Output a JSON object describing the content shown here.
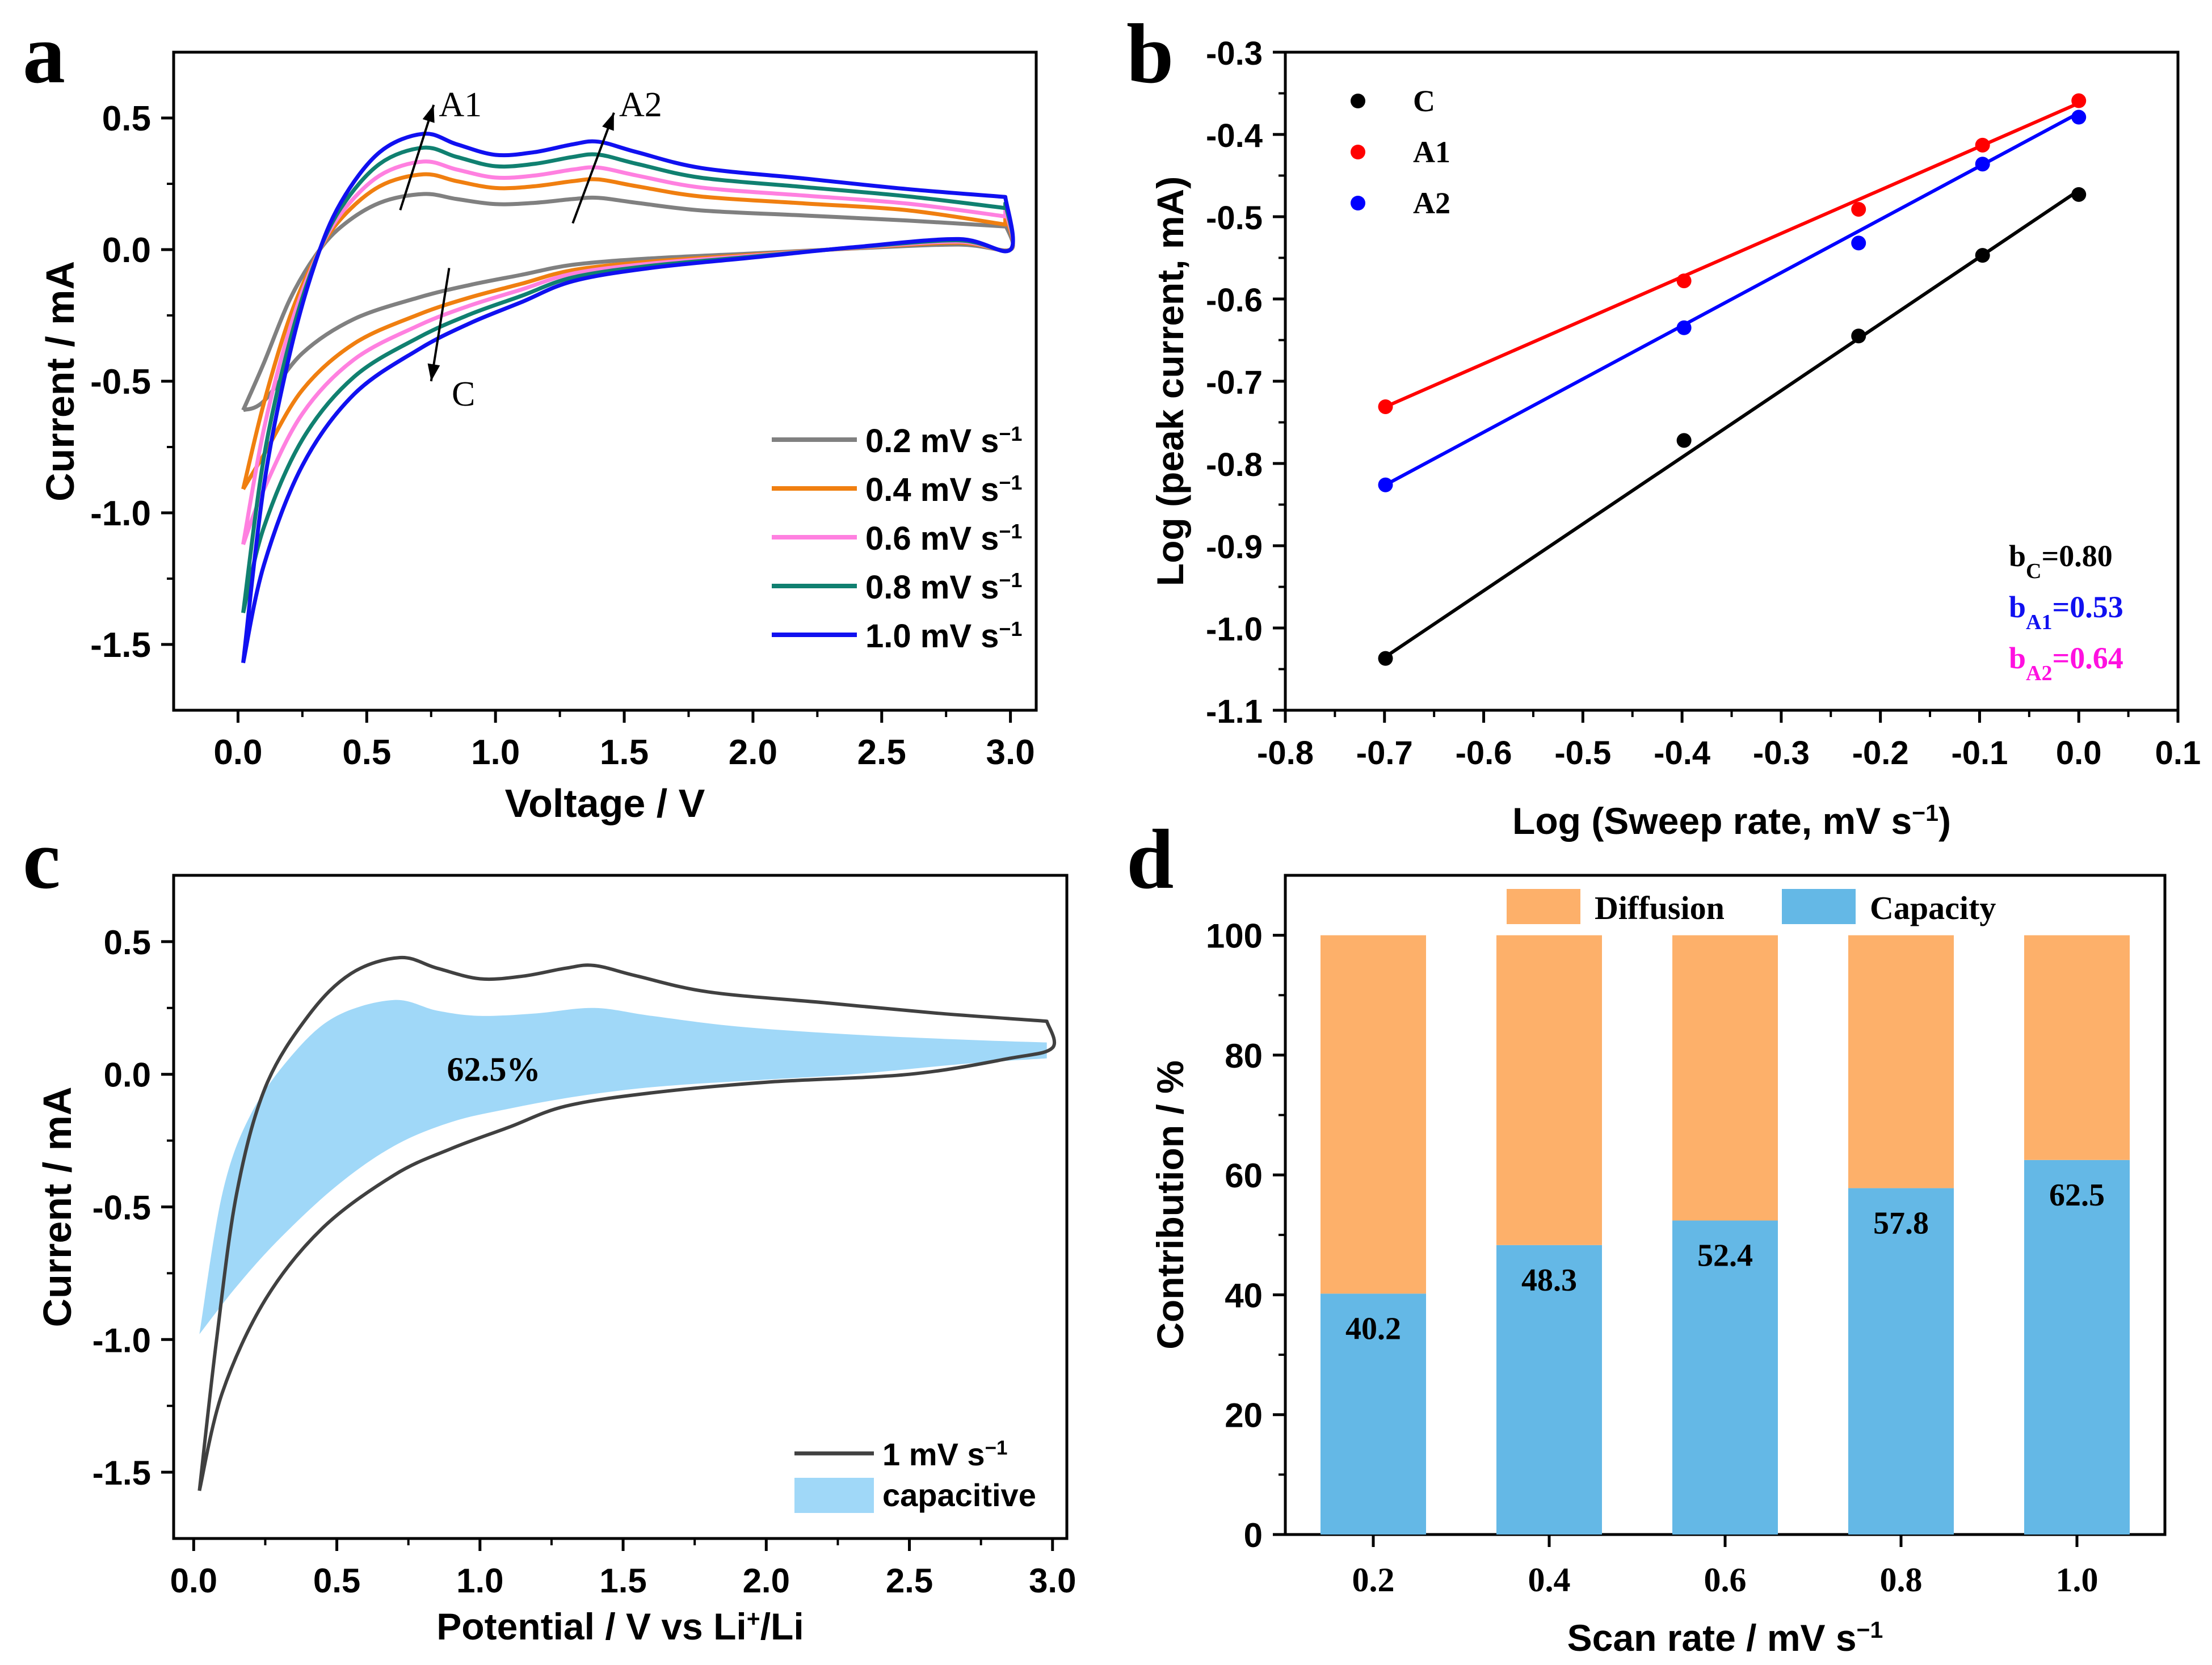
{
  "figure": {
    "panel_labels": [
      "a",
      "b",
      "c",
      "d"
    ]
  },
  "chart_data": [
    {
      "panel": "a",
      "type": "line",
      "title": "",
      "xlabel": "Voltage / V",
      "ylabel": "Current / mA",
      "xlim": [
        -0.25,
        3.1
      ],
      "ylim": [
        -1.75,
        0.75
      ],
      "xticks": [
        0.0,
        0.5,
        1.0,
        1.5,
        2.0,
        2.5,
        3.0
      ],
      "xtick_labels": [
        "0.0",
        "0.5",
        "1.0",
        "1.5",
        "2.0",
        "2.5",
        "3.0"
      ],
      "yticks": [
        0.5,
        0.0,
        -0.5,
        -1.0,
        -1.5
      ],
      "ytick_labels": [
        "0.5",
        "0.0",
        "-0.5",
        "-1.0",
        "-1.5"
      ],
      "legend_position": "bottom-right",
      "series": [
        {
          "name": "0.2 mV s",
          "name_sup": "−1",
          "color": "#808080",
          "scale": 0.48,
          "end": 0.08,
          "vmin": -0.61
        },
        {
          "name": "0.4 mV s",
          "name_sup": "−1",
          "color": "#f07f10",
          "scale": 0.65,
          "end": 0.06,
          "vmin": -0.91
        },
        {
          "name": "0.6 mV s",
          "name_sup": "−1",
          "color": "#ff80e0",
          "scale": 0.76,
          "end": 0.1,
          "vmin": -1.12
        },
        {
          "name": "0.8 mV s",
          "name_sup": "−1",
          "color": "#108070",
          "scale": 0.88,
          "end": 0.14,
          "vmin": -1.38
        },
        {
          "name": "1.0 mV s",
          "name_sup": "−1",
          "color": "#1010f0",
          "scale": 1.0,
          "end": 0.2,
          "vmin": -1.57
        }
      ],
      "reference_curve": {
        "anodic": [
          [
            0.02,
            -1.57
          ],
          [
            0.1,
            -0.9
          ],
          [
            0.2,
            -0.4
          ],
          [
            0.3,
            -0.05
          ],
          [
            0.4,
            0.18
          ],
          [
            0.55,
            0.37
          ],
          [
            0.72,
            0.44
          ],
          [
            0.85,
            0.4
          ],
          [
            1.0,
            0.36
          ],
          [
            1.15,
            0.37
          ],
          [
            1.3,
            0.4
          ],
          [
            1.4,
            0.41
          ],
          [
            1.55,
            0.37
          ],
          [
            1.8,
            0.31
          ],
          [
            2.2,
            0.27
          ],
          [
            2.6,
            0.23
          ],
          [
            2.98,
            0.2
          ]
        ],
        "cathodic": [
          [
            2.98,
            0.2
          ],
          [
            3.0,
            0.0
          ],
          [
            2.8,
            0.04
          ],
          [
            2.4,
            0.01
          ],
          [
            2.0,
            -0.03
          ],
          [
            1.6,
            -0.07
          ],
          [
            1.3,
            -0.12
          ],
          [
            1.1,
            -0.2
          ],
          [
            0.9,
            -0.28
          ],
          [
            0.7,
            -0.38
          ],
          [
            0.45,
            -0.55
          ],
          [
            0.25,
            -0.82
          ],
          [
            0.1,
            -1.2
          ],
          [
            0.02,
            -1.57
          ]
        ]
      },
      "annotations": [
        {
          "text": "A1",
          "arrow_from": [
            0.63,
            0.15
          ],
          "arrow_to": [
            0.76,
            0.55
          ],
          "label_at": [
            0.78,
            0.55
          ]
        },
        {
          "text": "A2",
          "arrow_from": [
            1.3,
            0.1
          ],
          "arrow_to": [
            1.46,
            0.52
          ],
          "label_at": [
            1.48,
            0.55
          ]
        },
        {
          "text": "C",
          "arrow_from": [
            0.82,
            -0.07
          ],
          "arrow_to": [
            0.75,
            -0.5
          ],
          "label_at": [
            0.83,
            -0.55
          ]
        }
      ]
    },
    {
      "panel": "b",
      "type": "scatter",
      "title": "",
      "xlabel": "Log (Sweep rate, mV s",
      "xlabel_sup": "−1",
      "xlabel_tail": ")",
      "ylabel": "Log (peak current, mA)",
      "xlim": [
        -0.8,
        0.1
      ],
      "ylim": [
        -1.1,
        -0.3
      ],
      "xticks": [
        -0.8,
        -0.7,
        -0.6,
        -0.5,
        -0.4,
        -0.3,
        -0.2,
        -0.1,
        0.0,
        0.1
      ],
      "xtick_labels": [
        "-0.8",
        "-0.7",
        "-0.6",
        "-0.5",
        "-0.4",
        "-0.3",
        "-0.2",
        "-0.1",
        "0.0",
        "0.1"
      ],
      "yticks": [
        -0.3,
        -0.4,
        -0.5,
        -0.6,
        -0.7,
        -0.8,
        -0.9,
        -1.0,
        -1.1
      ],
      "ytick_labels": [
        "-0.3",
        "-0.4",
        "-0.5",
        "-0.6",
        "-0.7",
        "-0.8",
        "-0.9",
        "-1.0",
        "-1.1"
      ],
      "legend_position": "top-left",
      "series": [
        {
          "name": "C",
          "color": "#000000",
          "x": [
            -0.699,
            -0.398,
            -0.222,
            -0.097,
            0.0
          ],
          "y": [
            -1.037,
            -0.772,
            -0.645,
            -0.547,
            -0.473
          ],
          "fit": [
            [
              -0.699,
              -1.035
            ],
            [
              0.0,
              -0.468
            ]
          ]
        },
        {
          "name": "A1",
          "color": "#ff0000",
          "x": [
            -0.699,
            -0.398,
            -0.222,
            -0.097,
            0.0
          ],
          "y": [
            -0.731,
            -0.578,
            -0.491,
            -0.413,
            -0.359
          ],
          "fit": [
            [
              -0.699,
              -0.731
            ],
            [
              0.0,
              -0.362
            ]
          ]
        },
        {
          "name": "A2",
          "color": "#0000ff",
          "x": [
            -0.699,
            -0.398,
            -0.222,
            -0.097,
            0.0
          ],
          "y": [
            -0.826,
            -0.635,
            -0.532,
            -0.436,
            -0.379
          ],
          "fit": [
            [
              -0.699,
              -0.826
            ],
            [
              0.0,
              -0.374
            ]
          ]
        }
      ],
      "b_values": [
        {
          "base": "b",
          "sub": "C",
          "value": "=0.80",
          "color": "#000000"
        },
        {
          "base": "b",
          "sub": "A1",
          "value": "=0.53",
          "color": "#1010f0"
        },
        {
          "base": "b",
          "sub": "A2",
          "value": "=0.64",
          "color": "#ff10e0"
        }
      ]
    },
    {
      "panel": "c",
      "type": "area",
      "title": "",
      "xlabel": "Potential / V vs Li",
      "xlabel_sup": "+",
      "xlabel_tail": "/Li",
      "ylabel": "Current / mA",
      "xlim": [
        -0.07,
        3.05
      ],
      "ylim": [
        -1.75,
        0.75
      ],
      "xticks": [
        0.0,
        0.5,
        1.0,
        1.5,
        2.0,
        2.5,
        3.0
      ],
      "xtick_labels": [
        "0.0",
        "0.5",
        "1.0",
        "1.5",
        "2.0",
        "2.5",
        "3.0"
      ],
      "yticks": [
        0.5,
        0.0,
        -0.5,
        -1.0,
        -1.5
      ],
      "ytick_labels": [
        "0.5",
        "0.0",
        "-0.5",
        "-1.0",
        "-1.5"
      ],
      "legend_position": "bottom-right",
      "series": [
        {
          "name": "1 mV s",
          "name_sup": "−1",
          "color": "#404040",
          "kind": "line"
        },
        {
          "name": "capacitive",
          "color": "#a0d8f8",
          "kind": "fill"
        }
      ],
      "line_anodic": [
        [
          0.02,
          -1.57
        ],
        [
          0.08,
          -1.0
        ],
        [
          0.15,
          -0.45
        ],
        [
          0.25,
          -0.05
        ],
        [
          0.4,
          0.22
        ],
        [
          0.55,
          0.38
        ],
        [
          0.72,
          0.44
        ],
        [
          0.85,
          0.4
        ],
        [
          1.0,
          0.36
        ],
        [
          1.15,
          0.37
        ],
        [
          1.3,
          0.4
        ],
        [
          1.4,
          0.41
        ],
        [
          1.55,
          0.37
        ],
        [
          1.8,
          0.31
        ],
        [
          2.2,
          0.27
        ],
        [
          2.6,
          0.23
        ],
        [
          2.98,
          0.2
        ]
      ],
      "line_cathodic": [
        [
          2.98,
          0.2
        ],
        [
          3.0,
          0.1
        ],
        [
          2.85,
          0.06
        ],
        [
          2.5,
          0.0
        ],
        [
          2.0,
          -0.03
        ],
        [
          1.6,
          -0.07
        ],
        [
          1.3,
          -0.12
        ],
        [
          1.1,
          -0.2
        ],
        [
          0.9,
          -0.28
        ],
        [
          0.7,
          -0.38
        ],
        [
          0.45,
          -0.58
        ],
        [
          0.25,
          -0.85
        ],
        [
          0.1,
          -1.2
        ],
        [
          0.02,
          -1.57
        ]
      ],
      "capacitive_upper": [
        [
          0.02,
          -0.98
        ],
        [
          0.1,
          -0.45
        ],
        [
          0.2,
          -0.15
        ],
        [
          0.35,
          0.08
        ],
        [
          0.5,
          0.22
        ],
        [
          0.7,
          0.28
        ],
        [
          0.85,
          0.24
        ],
        [
          1.0,
          0.22
        ],
        [
          1.2,
          0.23
        ],
        [
          1.4,
          0.25
        ],
        [
          1.6,
          0.22
        ],
        [
          1.9,
          0.18
        ],
        [
          2.3,
          0.15
        ],
        [
          2.7,
          0.13
        ],
        [
          2.98,
          0.12
        ]
      ],
      "capacitive_lower": [
        [
          2.98,
          0.06
        ],
        [
          2.7,
          0.04
        ],
        [
          2.3,
          0.0
        ],
        [
          2.0,
          -0.02
        ],
        [
          1.7,
          -0.04
        ],
        [
          1.5,
          -0.06
        ],
        [
          1.3,
          -0.09
        ],
        [
          1.1,
          -0.13
        ],
        [
          0.9,
          -0.18
        ],
        [
          0.7,
          -0.27
        ],
        [
          0.5,
          -0.42
        ],
        [
          0.3,
          -0.62
        ],
        [
          0.15,
          -0.8
        ],
        [
          0.02,
          -0.98
        ]
      ],
      "annotation": "62.5%"
    },
    {
      "panel": "d",
      "type": "bar",
      "title": "",
      "xlabel": "Scan rate / mV s",
      "xlabel_sup": "−1",
      "ylabel": "Contribution / %",
      "ylim": [
        0,
        110
      ],
      "yticks": [
        0,
        20,
        40,
        60,
        80,
        100
      ],
      "ytick_labels": [
        "0",
        "20",
        "40",
        "60",
        "80",
        "100"
      ],
      "categories": [
        "0.2",
        "0.4",
        "0.6",
        "0.8",
        "1.0"
      ],
      "legend_position": "top",
      "series": [
        {
          "name": "Capacity",
          "color": "#64b8e6",
          "values": [
            40.2,
            48.3,
            52.4,
            57.8,
            62.5
          ]
        },
        {
          "name": "Diffusion",
          "color": "#fdb06a",
          "values": [
            59.8,
            51.7,
            47.6,
            42.2,
            37.5
          ]
        }
      ],
      "data_labels": [
        "40.2",
        "48.3",
        "52.4",
        "57.8",
        "62.5"
      ],
      "legend_order": [
        "Diffusion",
        "Capacity"
      ]
    }
  ]
}
